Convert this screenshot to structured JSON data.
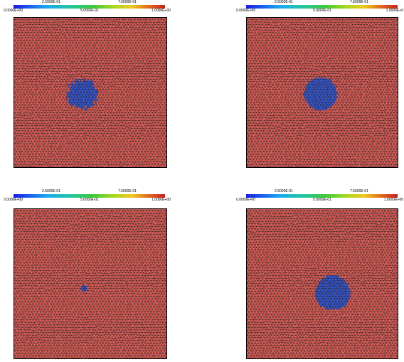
{
  "colors": {
    "mesh_fill": "#e8625c",
    "mesh_line": "#1a1a1a",
    "blob_fill": "#3a5ad8",
    "background": "#ffffff"
  },
  "panels": [
    {
      "id": "top-left",
      "colorbar": {
        "ticks_upper": [
          "2.5000E-01",
          "7.5000E-01"
        ],
        "ticks_lower": [
          "0.0000E+00",
          "5.0000E-01",
          "1.0000E+00"
        ]
      },
      "blob": {
        "cx_frac": 0.45,
        "cy_frac": 0.51,
        "r_frac": 0.1,
        "ragged": true
      }
    },
    {
      "id": "top-right",
      "colorbar": {
        "ticks_upper": [
          "2.5000E-01",
          "7.5000E-01"
        ],
        "ticks_lower": [
          "0.0000E+00",
          "5.0000E-01",
          "1.0000E+0"
        ]
      },
      "blob": {
        "cx_frac": 0.49,
        "cy_frac": 0.51,
        "r_frac": 0.11,
        "ragged": false
      }
    },
    {
      "id": "bottom-left",
      "colorbar": {
        "ticks_upper": [
          "2.5000E-01",
          "7.5000E-01"
        ],
        "ticks_lower": [
          "0.0000E+00",
          "5.0000E-01",
          "1.0000E+00"
        ]
      },
      "blob": {
        "cx_frac": 0.46,
        "cy_frac": 0.53,
        "r_frac": 0.022,
        "ragged": true
      }
    },
    {
      "id": "bottom-right",
      "colorbar": {
        "ticks_upper": [
          "2.5000E-01",
          "7.5000E-01"
        ],
        "ticks_lower": [
          "0.0000E+00",
          "5.0000E-01",
          "1.0000E+00"
        ]
      },
      "blob": {
        "cx_frac": 0.57,
        "cy_frac": 0.56,
        "r_frac": 0.115,
        "ragged": false
      }
    }
  ]
}
